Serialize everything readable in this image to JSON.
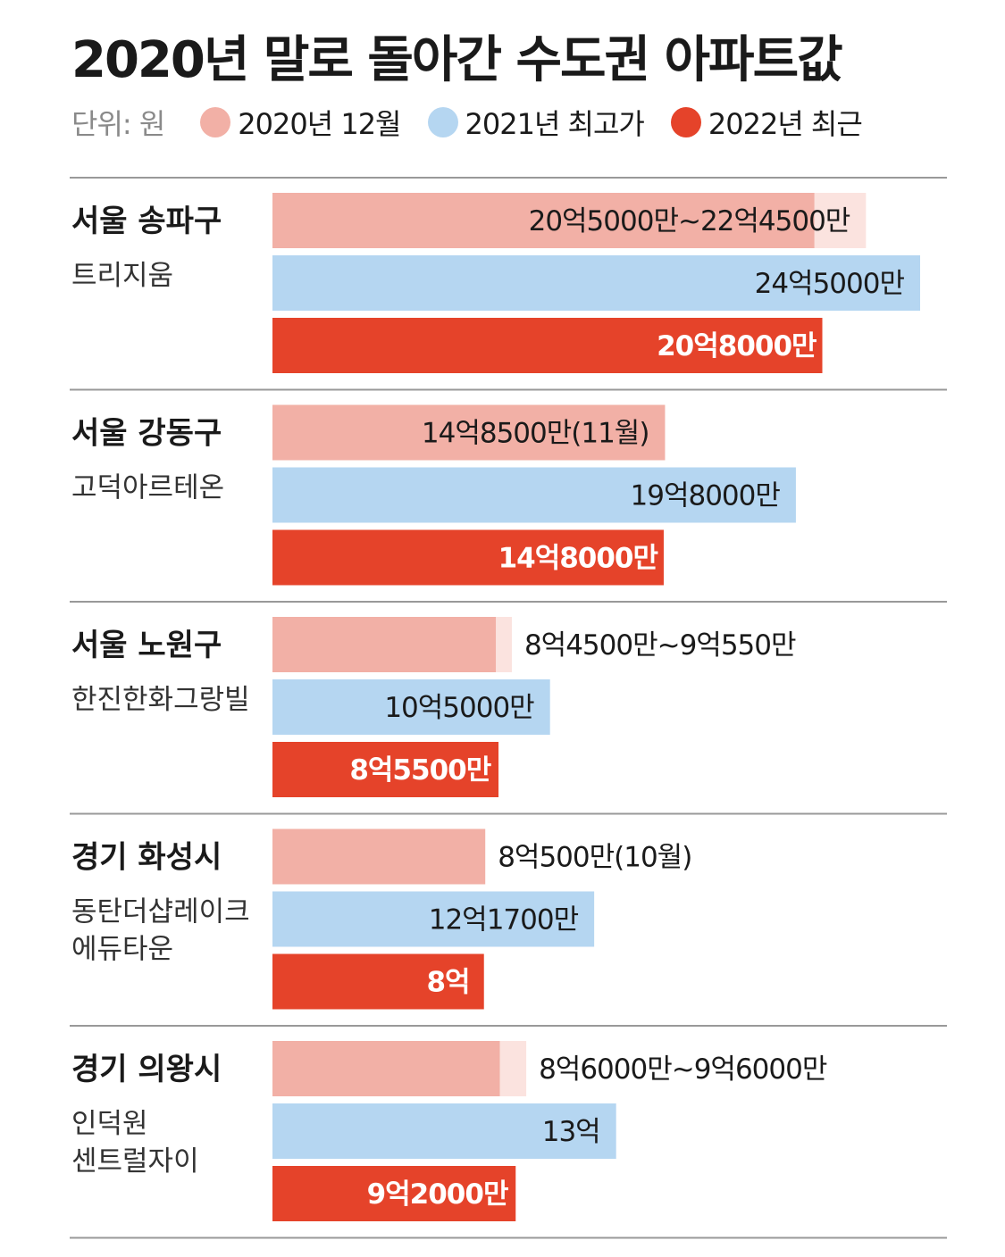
{
  "title": "2020년 말로 돌아간 수도권 아파트값",
  "legend": {
    "unit": "단위: 원",
    "items": [
      {
        "label": "2020년 12월",
        "color": "#f2b0a6"
      },
      {
        "label": "2021년 최고가",
        "color": "#b5d6f1"
      },
      {
        "label": "2022년 최근",
        "color": "#e5432a"
      }
    ]
  },
  "colors": {
    "range_extension": "#fbe3df",
    "highlight_text": "#e5432a",
    "divider": "#999999"
  },
  "chart_data": {
    "type": "bar",
    "orientation": "horizontal",
    "unit": "만원",
    "series_names": [
      "2020년 12월",
      "2021년 최고가",
      "2022년 최근"
    ],
    "xlim": [
      0,
      250000
    ],
    "categories": [
      {
        "title": "서울 송파구",
        "subtitle": [
          "트리지움"
        ],
        "bars": [
          {
            "series": "2020년 12월",
            "value": 205000,
            "range_max": 224500,
            "label": "20억5000만~22억4500만"
          },
          {
            "series": "2021년 최고가",
            "value": 245000,
            "label": "24억5000만"
          },
          {
            "series": "2022년 최근",
            "value": 208000,
            "label": "20억8000만"
          }
        ]
      },
      {
        "title": "서울 강동구",
        "subtitle": [
          "고덕아르테온"
        ],
        "bars": [
          {
            "series": "2020년 12월",
            "value": 148500,
            "label": "14억8500만(11월)"
          },
          {
            "series": "2021년 최고가",
            "value": 198000,
            "label": "19억8000만"
          },
          {
            "series": "2022년 최근",
            "value": 148000,
            "label": "14억8000만"
          }
        ]
      },
      {
        "title": "서울 노원구",
        "subtitle": [
          "한진한화그랑빌"
        ],
        "bars": [
          {
            "series": "2020년 12월",
            "value": 84500,
            "range_max": 90550,
            "label": "8억4500만~9억550만"
          },
          {
            "series": "2021년 최고가",
            "value": 105000,
            "label": "10억5000만"
          },
          {
            "series": "2022년 최근",
            "value": 85500,
            "label": "8억5500만"
          }
        ]
      },
      {
        "title": "경기 화성시",
        "subtitle": [
          "동탄더샵레이크",
          "에듀타운"
        ],
        "bars": [
          {
            "series": "2020년 12월",
            "value": 80500,
            "label": "8억500만(10월)"
          },
          {
            "series": "2021년 최고가",
            "value": 121700,
            "label": "12억1700만"
          },
          {
            "series": "2022년 최근",
            "value": 80000,
            "label": "8억"
          }
        ]
      },
      {
        "title": "경기 의왕시",
        "subtitle": [
          "인덕원",
          "센트럴자이"
        ],
        "bars": [
          {
            "series": "2020년 12월",
            "value": 86000,
            "range_max": 96000,
            "label": "8억6000만~9억6000만"
          },
          {
            "series": "2021년 최고가",
            "value": 130000,
            "label": "13억"
          },
          {
            "series": "2022년 최근",
            "value": 92000,
            "label": "9억2000만"
          }
        ]
      }
    ]
  }
}
